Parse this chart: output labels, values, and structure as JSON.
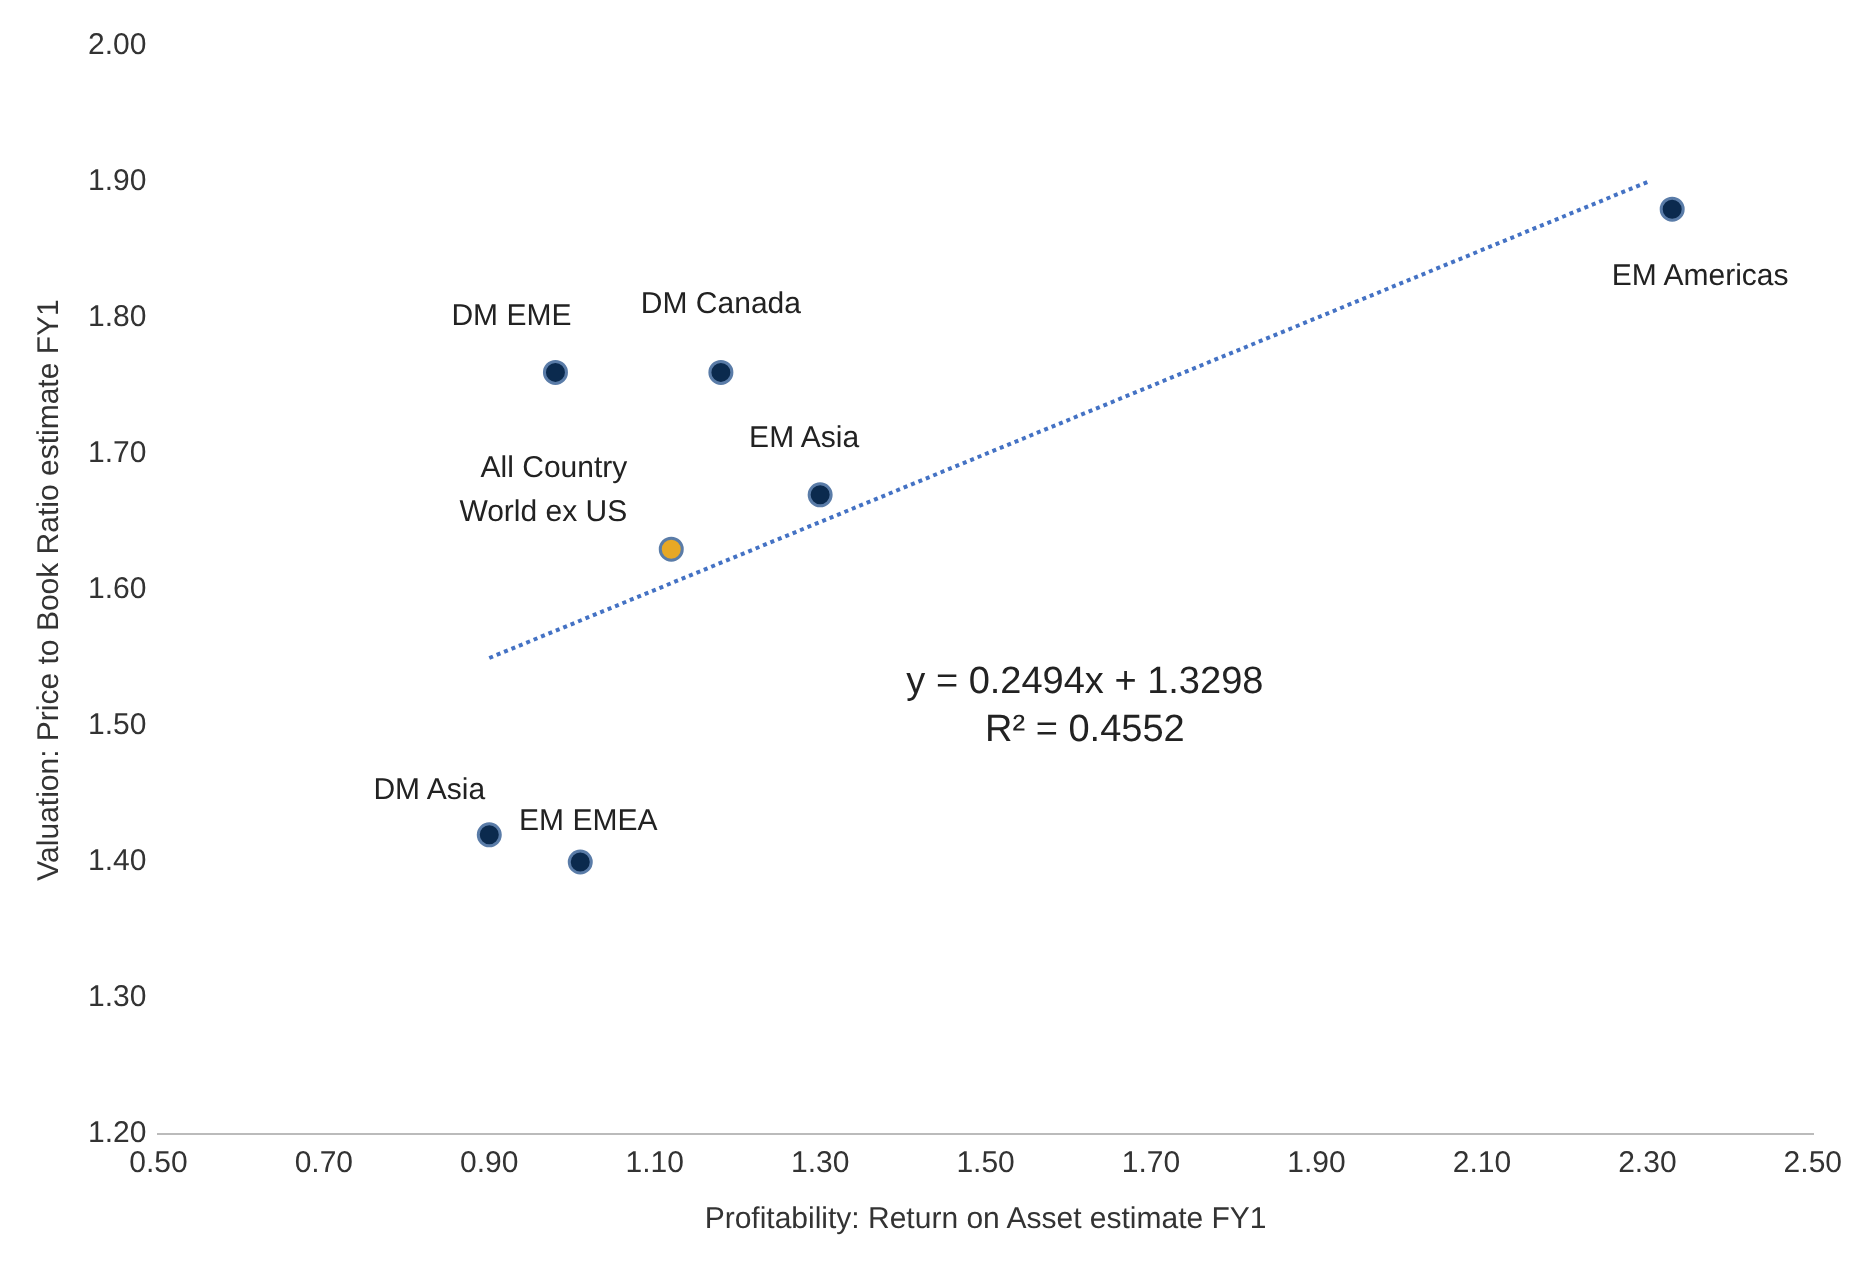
{
  "chart_data": {
    "type": "scatter",
    "xlabel": "Profitability: Return on Asset estimate FY1",
    "ylabel": "Valuation: Price to Book Ratio estimate FY1",
    "series": [
      {
        "name": "DM EME",
        "color": "#0b2a4e",
        "x": [
          0.98
        ],
        "values": [
          1.76
        ]
      },
      {
        "name": "DM Canada",
        "color": "#0b2a4e",
        "x": [
          1.18
        ],
        "values": [
          1.76
        ]
      },
      {
        "name": "EM Asia",
        "color": "#0b2a4e",
        "x": [
          1.3
        ],
        "values": [
          1.67
        ]
      },
      {
        "name": "All Country World ex US",
        "color": "#e8a825",
        "x": [
          1.12
        ],
        "values": [
          1.63
        ]
      },
      {
        "name": "EM Americas",
        "color": "#0b2a4e",
        "x": [
          2.33
        ],
        "values": [
          1.88
        ]
      },
      {
        "name": "DM Asia",
        "color": "#0b2a4e",
        "x": [
          0.9
        ],
        "values": [
          1.42
        ]
      },
      {
        "name": "EM EMEA",
        "color": "#0b2a4e",
        "x": [
          1.01
        ],
        "values": [
          1.4
        ]
      },
      {
        "type": "line",
        "color": "#4472c4",
        "line_style": "dotted",
        "marker": "none",
        "x": [
          0.9,
          2.3
        ],
        "values": [
          1.55,
          1.9
        ]
      }
    ],
    "annotations": [
      "y = 0.2494x + 1.3298",
      "R² = 0.4552"
    ],
    "marker": "circle",
    "grid": false,
    "legend": false,
    "xlim": [
      0.5,
      2.5
    ],
    "xticks": [
      {
        "value": 0.5,
        "label": "0.50"
      },
      {
        "value": 0.7,
        "label": "0.70"
      },
      {
        "value": 0.9,
        "label": "0.90"
      },
      {
        "value": 1.1,
        "label": "1.10"
      },
      {
        "value": 1.3,
        "label": "1.30"
      },
      {
        "value": 1.5,
        "label": "1.50"
      },
      {
        "value": 1.7,
        "label": "1.70"
      },
      {
        "value": 1.9,
        "label": "1.90"
      },
      {
        "value": 2.1,
        "label": "2.10"
      },
      {
        "value": 2.3,
        "label": "2.30"
      },
      {
        "value": 2.5,
        "label": "2.50"
      }
    ],
    "ylim": [
      1.2,
      2.0
    ],
    "yticks": [
      {
        "value": 1.2,
        "label": "1.20"
      },
      {
        "value": 1.3,
        "label": "1.30"
      },
      {
        "value": 1.4,
        "label": "1.40"
      },
      {
        "value": 1.5,
        "label": "1.50"
      },
      {
        "value": 1.6,
        "label": "1.60"
      },
      {
        "value": 1.7,
        "label": "1.70"
      },
      {
        "value": 1.8,
        "label": "1.80"
      },
      {
        "value": 1.9,
        "label": "1.90"
      },
      {
        "value": 2.0,
        "label": "2.00"
      }
    ]
  }
}
